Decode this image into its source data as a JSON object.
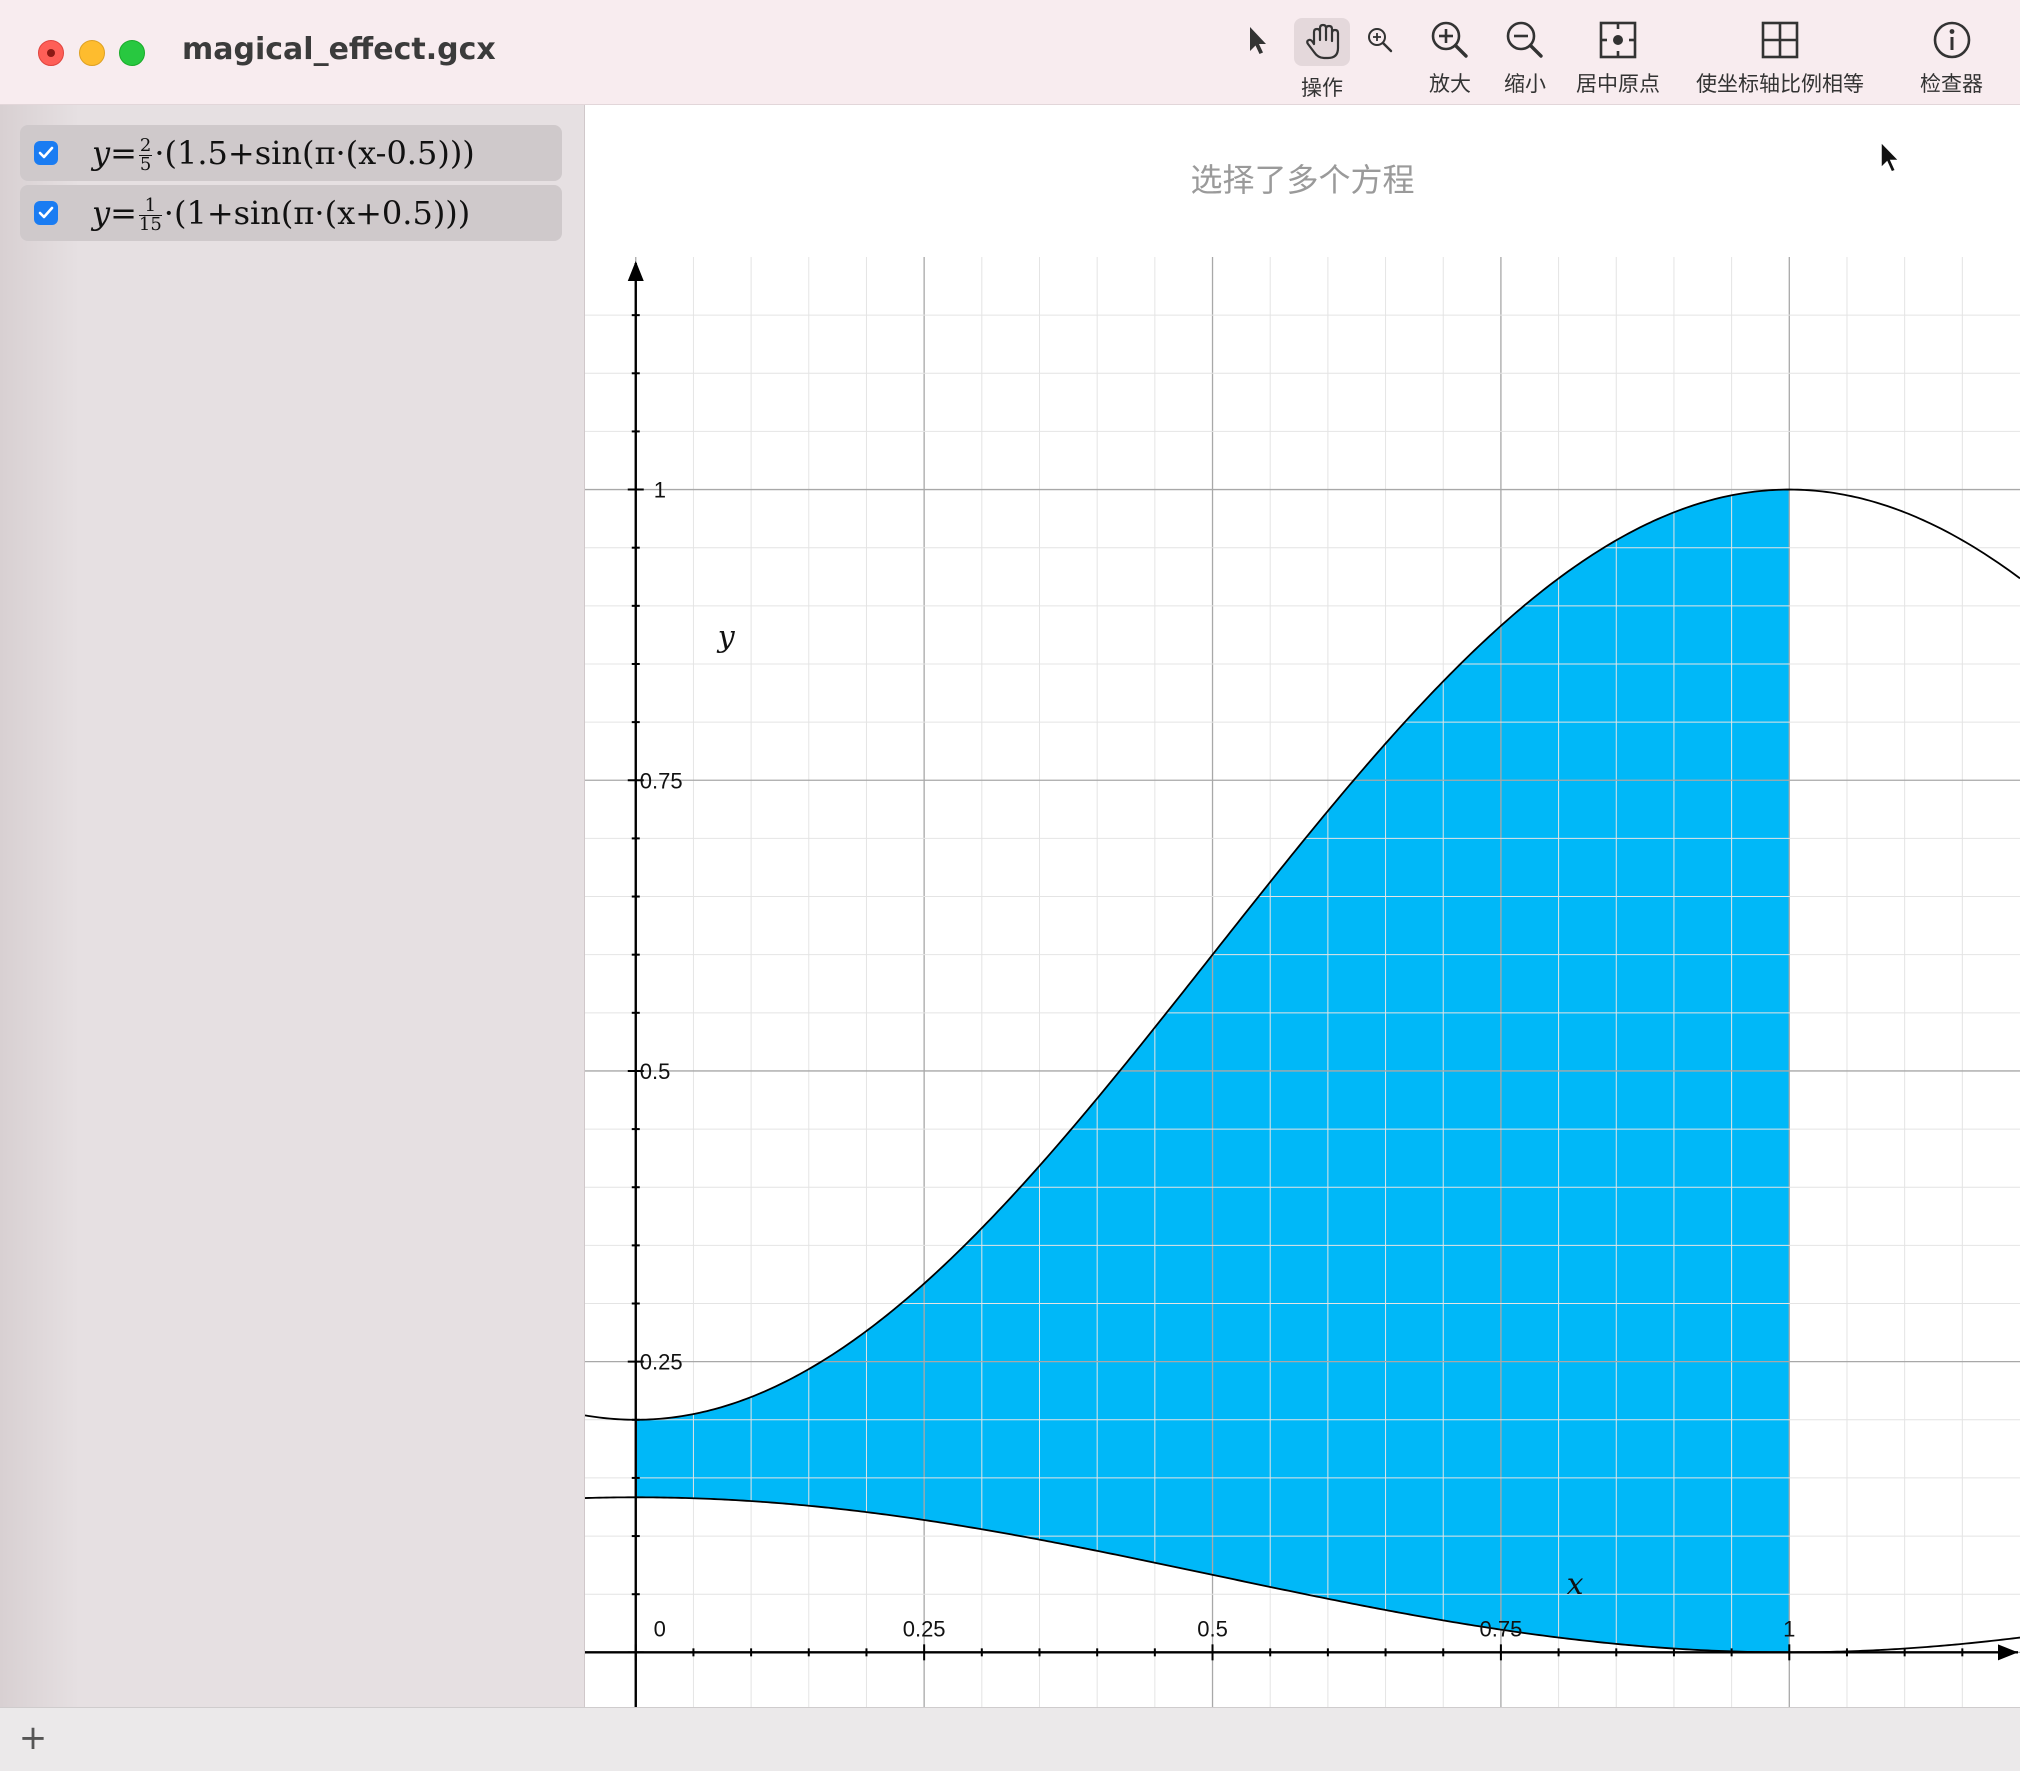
{
  "window": {
    "title": "magical_effect.gcx"
  },
  "toolbar": {
    "select_tool": "arrow-pointer-icon",
    "pan_tool_label": "操作",
    "zoom_tool": "magnifier-icon",
    "zoom_in_label": "放大",
    "zoom_out_label": "缩小",
    "center_origin_label": "居中原点",
    "equal_axes_label": "使坐标轴比例相等",
    "inspector_label": "检查器"
  },
  "sidebar": {
    "equations": [
      {
        "checked": true,
        "prefix": "y=",
        "frac_num": "2",
        "frac_den": "5",
        "suffix": "·(1.5+sin(π·(x-0.5)))"
      },
      {
        "checked": true,
        "prefix": "y=",
        "frac_num": "1",
        "frac_den": "15",
        "suffix": "·(1+sin(π·(x+0.5)))"
      }
    ]
  },
  "graph": {
    "status": "选择了多个方程",
    "fill_color": "#00b8f8",
    "x_axis_label": "x",
    "y_axis_label": "y",
    "x_ticks": [
      "0",
      "0.25",
      "0.5",
      "0.75",
      "1"
    ],
    "y_ticks": [
      "0.25",
      "0.5",
      "0.75",
      "1"
    ]
  },
  "chart_data": {
    "type": "area",
    "series": [
      {
        "formula": "y=2/5·(1.5+sin(π·(x-0.5)))"
      },
      {
        "formula": "y=1/15·(1+sin(π·(x+0.5)))"
      }
    ],
    "shaded_between_x": [
      0,
      1
    ],
    "xlim": [
      -0.044,
      1.2
    ],
    "ylim": [
      -0.047,
      1.2
    ],
    "grid": true
  },
  "bottombar": {
    "add_label": "+"
  }
}
